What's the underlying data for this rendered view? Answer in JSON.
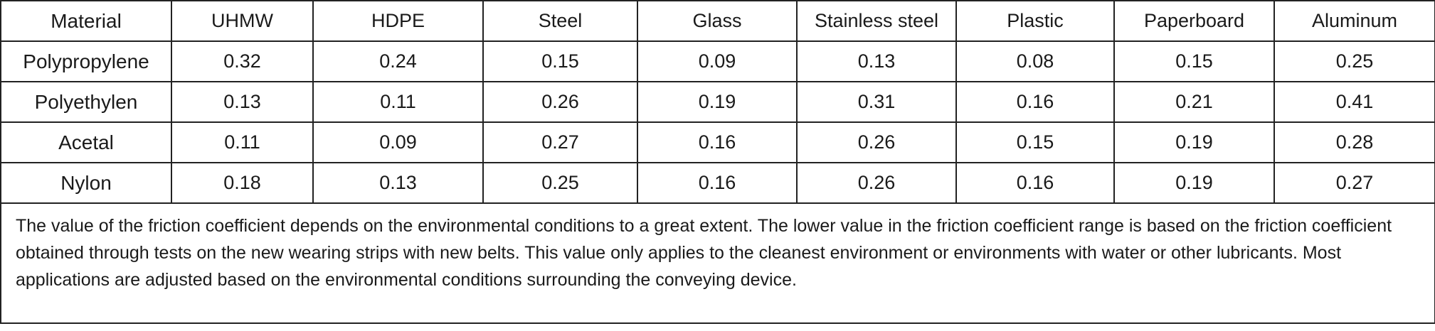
{
  "table": {
    "header": [
      "Material",
      "UHMW",
      "HDPE",
      "Steel",
      "Glass",
      "Stainless steel",
      "Plastic",
      "Paperboard",
      "Aluminum"
    ],
    "rows": [
      [
        "Polypropylene",
        0.32,
        0.24,
        0.15,
        0.09,
        0.13,
        0.08,
        0.15,
        0.25
      ],
      [
        "Polyethylen",
        0.13,
        0.11,
        0.26,
        0.19,
        0.31,
        0.16,
        0.21,
        0.41
      ],
      [
        "Acetal",
        0.11,
        0.09,
        0.27,
        0.16,
        0.26,
        0.15,
        0.19,
        0.28
      ],
      [
        "Nylon",
        0.18,
        0.13,
        0.25,
        0.16,
        0.26,
        0.16,
        0.19,
        0.27
      ]
    ],
    "note": "The value of the friction coefficient depends on the environmental conditions to a great extent. The lower value in the friction coefficient range is based on the friction coefficient obtained through tests on the new wearing strips with new belts. This value only applies to the cleanest environment or environments with water or other lubricants. Most applications are adjusted based on the environmental conditions surrounding the conveying device."
  }
}
